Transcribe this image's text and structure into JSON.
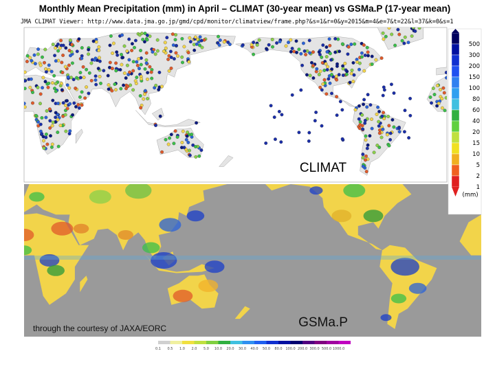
{
  "header": {
    "title": "Monthly Mean Precipitation (mm) in April – CLIMAT (30-year mean) vs GSMa.P (17-year mean)",
    "source": "JMA CLIMAT Viewer: http://www.data.jma.go.jp/gmd/cpd/monitor/climatview/frame.php?&s=1&r=0&y=2015&m=4&e=7&t=22&l=37&k=0&s=1"
  },
  "top_map": {
    "label": "CLIMAT",
    "colorbar": {
      "labels": [
        "500",
        "300",
        "200",
        "150",
        "100",
        "80",
        "60",
        "40",
        "20",
        "15",
        "10",
        "5",
        "2",
        "1"
      ],
      "unit": "(mm)"
    }
  },
  "bottom_map": {
    "label": "GSMa.P",
    "credit": "through the courtesy of JAXA/EORC",
    "colorbar": {
      "labels": [
        "0.1",
        "0.5",
        "1.0",
        "2.0",
        "5.0",
        "10.0",
        "20.0",
        "30.0",
        "40.0",
        "50.0",
        "80.0",
        "100.0",
        "200.0",
        "300.0",
        "500.0",
        "1000.0"
      ]
    }
  }
}
